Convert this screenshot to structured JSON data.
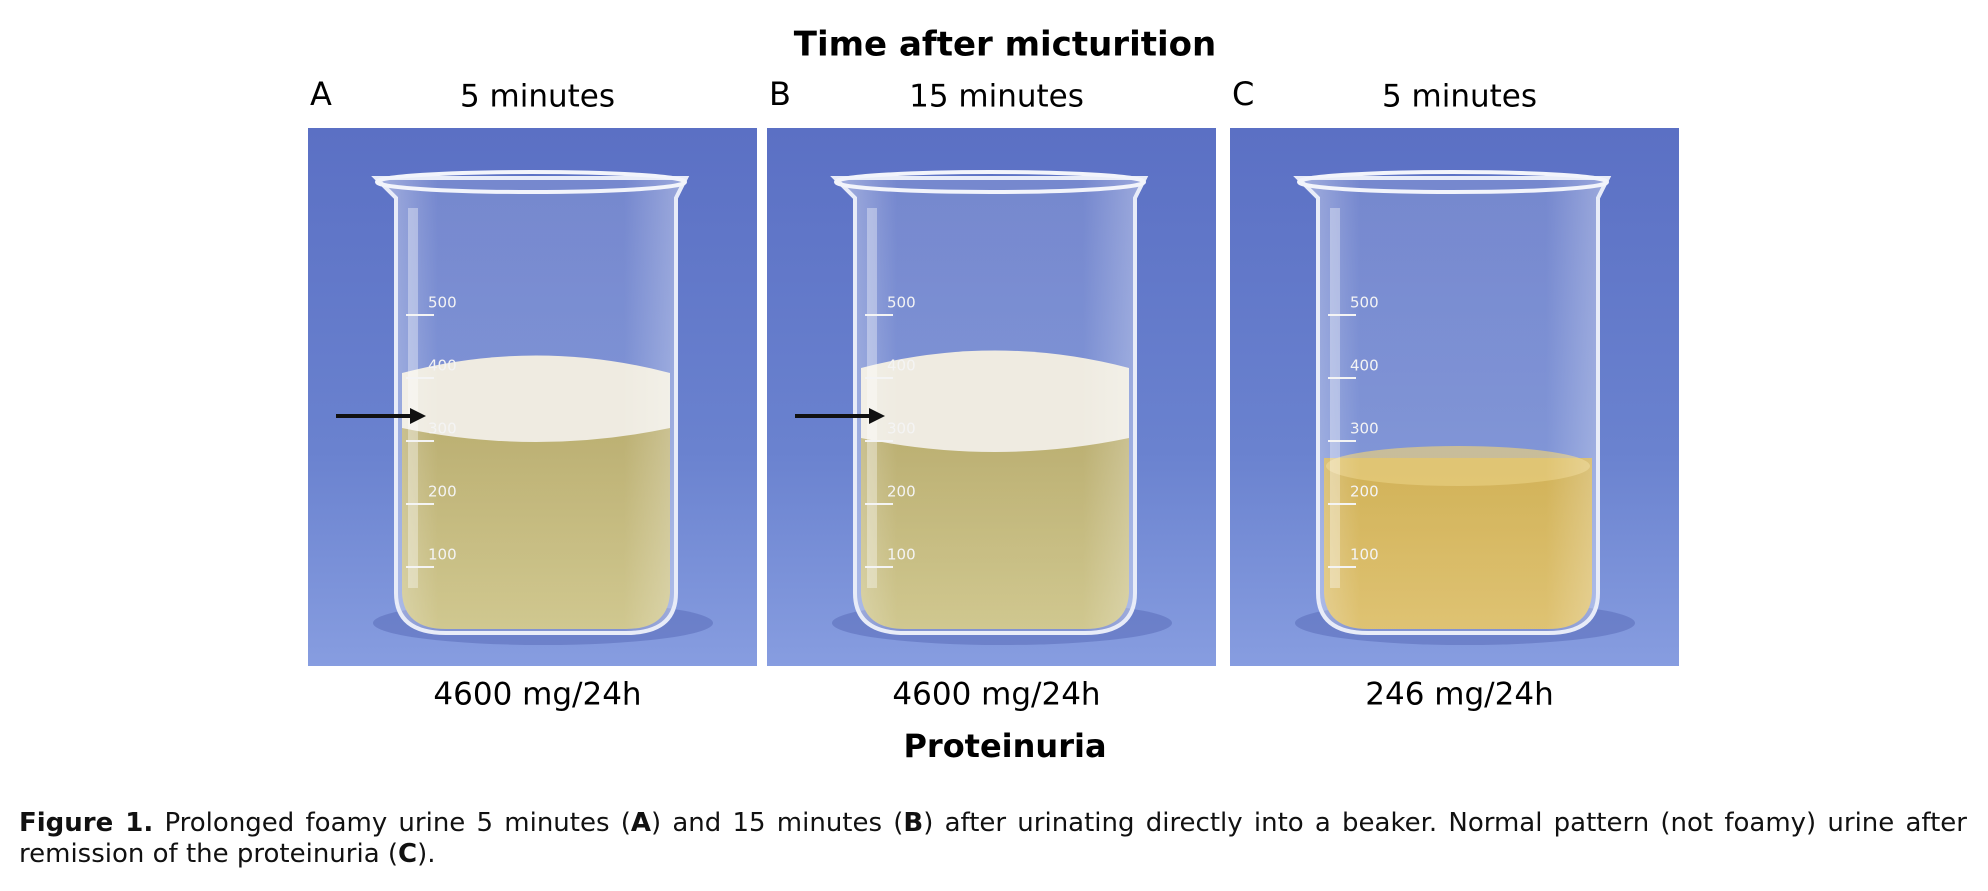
{
  "figure": {
    "title": "Time after micturition",
    "panels": [
      {
        "letter": "A",
        "time": "5 minutes",
        "protein": "4600 mg/24h",
        "graduations": [
          "500",
          "400",
          "300",
          "200",
          "100"
        ]
      },
      {
        "letter": "B",
        "time": "15 minutes",
        "protein": "4600 mg/24h",
        "graduations": [
          "500",
          "400",
          "300",
          "200",
          "100"
        ]
      },
      {
        "letter": "C",
        "time": "5 minutes",
        "protein": "246 mg/24h",
        "graduations": [
          "500",
          "400",
          "300",
          "200",
          "100"
        ]
      }
    ],
    "bottom_label": "Proteinuria"
  },
  "caption": {
    "label": "Figure 1.",
    "parts": [
      "Prolonged foamy urine 5 minutes (",
      "A",
      ") and 15 minutes (",
      "B",
      ") after urinating directly into a beaker. Normal pattern (not foamy) urine after remission of the proteinuria (",
      "C",
      ")."
    ]
  }
}
